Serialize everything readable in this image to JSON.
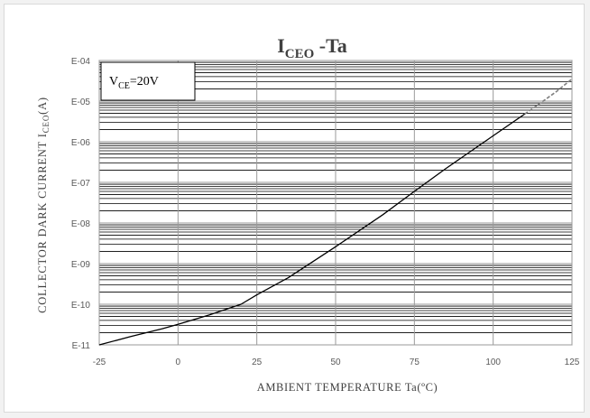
{
  "chart_data": {
    "type": "line",
    "title": {
      "main": "I",
      "sub": "CEO",
      "suffix": " -Ta"
    },
    "xlabel": "AMBIENT TEMPERATURE Ta(ºC)",
    "ylabel": {
      "main": "COLLECTOR DARK CURRENT  I",
      "sub": "CEO",
      "suffix": "(A)"
    },
    "annotation": {
      "main": "V",
      "sub": "CE",
      "suffix": "=20V"
    },
    "x_ticks": [
      -25,
      0,
      25,
      50,
      75,
      100,
      125
    ],
    "x_tick_labels": [
      "-25",
      "0",
      "25",
      "50",
      "75",
      "100",
      "125"
    ],
    "y_ticks": [
      1e-11,
      1e-10,
      1e-09,
      1e-08,
      1e-07,
      1e-06,
      1e-05,
      0.0001
    ],
    "y_tick_labels": [
      "E-11",
      "E-10",
      "E-09",
      "E-08",
      "E-07",
      "E-06",
      "E-05",
      "E-04"
    ],
    "xlim": [
      -25,
      125
    ],
    "ylim": [
      1e-11,
      0.0001
    ],
    "y_scale": "log",
    "grid": true,
    "series": [
      {
        "style": "solid",
        "x": [
          -25,
          -15,
          -5,
          0,
          10,
          20,
          25,
          35,
          50,
          65,
          75,
          85,
          100,
          110
        ],
        "y": [
          1e-11,
          1.6e-11,
          2.5e-11,
          3.2e-11,
          5.5e-11,
          1e-10,
          1.7e-10,
          4.5e-10,
          2.6e-09,
          1.6e-08,
          6e-08,
          2.2e-07,
          1.4e-06,
          4.8e-06
        ]
      },
      {
        "style": "dashed",
        "x": [
          110,
          115,
          120,
          125
        ],
        "y": [
          4.8e-06,
          9e-06,
          1.7e-05,
          3.5e-05
        ]
      }
    ]
  }
}
